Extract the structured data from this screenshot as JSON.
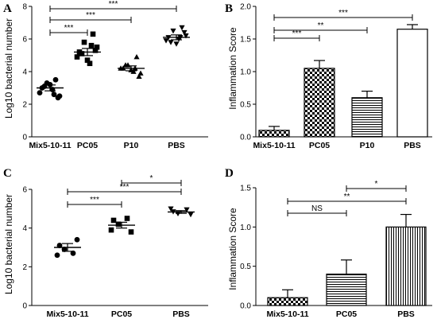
{
  "chart_data": [
    {
      "panel": "A",
      "type": "scatter",
      "ylabel": "Log10 bacterial number",
      "ylim": [
        0,
        8
      ],
      "yticks": [
        0,
        2,
        4,
        6,
        8
      ],
      "categories": [
        "Mix5-10-11",
        "PC05",
        "P10",
        "PBS"
      ],
      "markers": [
        "circle",
        "square",
        "triangle-up",
        "triangle-down"
      ],
      "points": [
        [
          3.0,
          3.5,
          3.3,
          2.5,
          2.7,
          2.9,
          3.1,
          2.4,
          3.2,
          2.6
        ],
        [
          5.2,
          6.3,
          5.8,
          5.5,
          4.9,
          4.5,
          5.1,
          5.3,
          4.7,
          5.6
        ],
        [
          4.2,
          4.9,
          4.4,
          3.9,
          4.2,
          4.0,
          4.4,
          3.7,
          4.1,
          4.2
        ],
        [
          6.1,
          6.7,
          6.5,
          6.2,
          5.9,
          6.0,
          5.8,
          6.4,
          5.7,
          6.1
        ]
      ],
      "mean": [
        3.0,
        5.2,
        4.2,
        6.1
      ],
      "sem": [
        0.18,
        0.22,
        0.15,
        0.15
      ],
      "comparisons": [
        {
          "from": 0,
          "to": 1,
          "label": "***"
        },
        {
          "from": 0,
          "to": 2,
          "label": "***"
        },
        {
          "from": 0,
          "to": 3,
          "label": "***"
        }
      ]
    },
    {
      "panel": "B",
      "type": "bar",
      "ylabel": "Inflammation Score",
      "ylim": [
        0,
        2.0
      ],
      "yticks": [
        "0.0",
        "0.5",
        "1.0",
        "1.5",
        "2.0"
      ],
      "categories": [
        "Mix5-10-11",
        "PC05",
        "P10",
        "PBS"
      ],
      "values": [
        0.1,
        1.05,
        0.6,
        1.65
      ],
      "errors": [
        0.06,
        0.12,
        0.1,
        0.07
      ],
      "patterns": [
        "check",
        "check",
        "hlines",
        "plain"
      ],
      "comparisons": [
        {
          "from": 0,
          "to": 1,
          "label": "***"
        },
        {
          "from": 0,
          "to": 2,
          "label": "**"
        },
        {
          "from": 0,
          "to": 3,
          "label": "***"
        }
      ]
    },
    {
      "panel": "C",
      "type": "scatter",
      "ylabel": "Log10 bacterial number",
      "ylim": [
        0,
        6
      ],
      "yticks": [
        0,
        2,
        4,
        6
      ],
      "categories": [
        "Mix5-10-11",
        "PC05",
        "PBS"
      ],
      "markers": [
        "circle",
        "square",
        "triangle-down"
      ],
      "points": [
        [
          3.1,
          2.7,
          2.9,
          3.4,
          2.6
        ],
        [
          4.4,
          4.5,
          4.2,
          3.8,
          3.9
        ],
        [
          4.85,
          4.95,
          4.75,
          4.7,
          5.0
        ]
      ],
      "mean": [
        3.0,
        4.15,
        4.83
      ],
      "sem": [
        0.2,
        0.15,
        0.07
      ],
      "comparisons": [
        {
          "from": 0,
          "to": 1,
          "label": "***"
        },
        {
          "from": 0,
          "to": 2,
          "label": "***"
        },
        {
          "from": 1,
          "to": 2,
          "label": "*"
        }
      ]
    },
    {
      "panel": "D",
      "type": "bar",
      "ylabel": "Inflammation Score",
      "ylim": [
        0,
        1.5
      ],
      "yticks": [
        "0.0",
        "0.5",
        "1.0",
        "1.5"
      ],
      "categories": [
        "Mix5-10-11",
        "PC05",
        "PBS"
      ],
      "values": [
        0.1,
        0.4,
        1.0
      ],
      "errors": [
        0.1,
        0.18,
        0.16
      ],
      "patterns": [
        "check",
        "hlines",
        "vlines"
      ],
      "comparisons": [
        {
          "from": 0,
          "to": 1,
          "label": "NS"
        },
        {
          "from": 0,
          "to": 2,
          "label": "**"
        },
        {
          "from": 1,
          "to": 2,
          "label": "*"
        }
      ]
    }
  ]
}
